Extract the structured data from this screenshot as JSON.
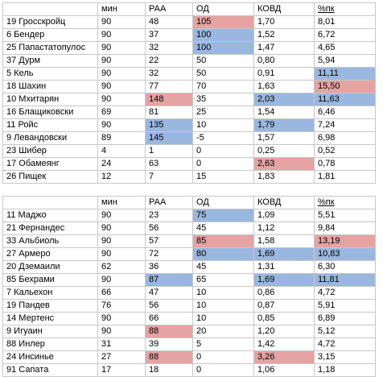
{
  "colors": {
    "red": "#e5a3a3",
    "blue": "#9ab7df"
  },
  "tables": [
    {
      "headers": [
        "",
        "мин",
        "РАА",
        "ОД",
        "КОВД",
        "%пк"
      ],
      "rows": [
        [
          {
            "v": "19 Гросскройц"
          },
          {
            "v": "90"
          },
          {
            "v": "48"
          },
          {
            "v": "105",
            "c": "red"
          },
          {
            "v": "1,70"
          },
          {
            "v": "8,01"
          }
        ],
        [
          {
            "v": "6 Бендер"
          },
          {
            "v": "90"
          },
          {
            "v": "37"
          },
          {
            "v": "100",
            "c": "blue"
          },
          {
            "v": "1,52"
          },
          {
            "v": "6,72"
          }
        ],
        [
          {
            "v": "25 Папастатопулос"
          },
          {
            "v": "90"
          },
          {
            "v": "32"
          },
          {
            "v": "100",
            "c": "blue"
          },
          {
            "v": "1,47"
          },
          {
            "v": "4,65"
          }
        ],
        [
          {
            "v": "37 Дурм"
          },
          {
            "v": "90"
          },
          {
            "v": "22"
          },
          {
            "v": "50"
          },
          {
            "v": "0,80"
          },
          {
            "v": "5,94"
          }
        ],
        [
          {
            "v": "5 Кель"
          },
          {
            "v": "90"
          },
          {
            "v": "32"
          },
          {
            "v": "50"
          },
          {
            "v": "0,91"
          },
          {
            "v": "11,11",
            "c": "blue"
          }
        ],
        [
          {
            "v": "18 Шахин"
          },
          {
            "v": "90"
          },
          {
            "v": "77"
          },
          {
            "v": "70"
          },
          {
            "v": "1,63"
          },
          {
            "v": "15,50",
            "c": "red"
          }
        ],
        [
          {
            "v": "10 Мхитарян"
          },
          {
            "v": "90"
          },
          {
            "v": "148",
            "c": "red"
          },
          {
            "v": "35"
          },
          {
            "v": "2,03",
            "c": "blue"
          },
          {
            "v": "11,63",
            "c": "blue"
          }
        ],
        [
          {
            "v": "16 Блащиковски"
          },
          {
            "v": "69"
          },
          {
            "v": "81"
          },
          {
            "v": "25"
          },
          {
            "v": "1,54"
          },
          {
            "v": "6,46"
          }
        ],
        [
          {
            "v": "11 Ройс"
          },
          {
            "v": "90"
          },
          {
            "v": "135",
            "c": "blue"
          },
          {
            "v": "10"
          },
          {
            "v": "1,79",
            "c": "blue"
          },
          {
            "v": "7,24"
          }
        ],
        [
          {
            "v": "9 Левандовски"
          },
          {
            "v": "89"
          },
          {
            "v": "145",
            "c": "blue"
          },
          {
            "v": "-5"
          },
          {
            "v": "1,57"
          },
          {
            "v": "6,98"
          }
        ],
        [
          {
            "v": "23 Шибер"
          },
          {
            "v": "4"
          },
          {
            "v": "1"
          },
          {
            "v": "0"
          },
          {
            "v": "0,25"
          },
          {
            "v": "0,52"
          }
        ],
        [
          {
            "v": "17 Обамеянг"
          },
          {
            "v": "24"
          },
          {
            "v": "63"
          },
          {
            "v": "0"
          },
          {
            "v": "2,63",
            "c": "red"
          },
          {
            "v": "0,78"
          }
        ],
        [
          {
            "v": "26 Пищек"
          },
          {
            "v": "12"
          },
          {
            "v": "7"
          },
          {
            "v": "15"
          },
          {
            "v": "1,83"
          },
          {
            "v": "1,81"
          }
        ]
      ]
    },
    {
      "headers": [
        "",
        "мин",
        "РАА",
        "ОД",
        "КОВД",
        "%пк"
      ],
      "rows": [
        [
          {
            "v": "11 Маджо"
          },
          {
            "v": "90"
          },
          {
            "v": "23"
          },
          {
            "v": "75",
            "c": "blue"
          },
          {
            "v": "1,09"
          },
          {
            "v": "5,51"
          }
        ],
        [
          {
            "v": "21 Фернандес"
          },
          {
            "v": "90"
          },
          {
            "v": "56"
          },
          {
            "v": "45"
          },
          {
            "v": "1,12"
          },
          {
            "v": "9,84"
          }
        ],
        [
          {
            "v": "33 Альбиоль"
          },
          {
            "v": "90"
          },
          {
            "v": "57"
          },
          {
            "v": "85",
            "c": "red"
          },
          {
            "v": "1,58"
          },
          {
            "v": "13,19",
            "c": "red"
          }
        ],
        [
          {
            "v": "27 Армеро"
          },
          {
            "v": "90"
          },
          {
            "v": "72"
          },
          {
            "v": "80",
            "c": "blue"
          },
          {
            "v": "1,69",
            "c": "blue"
          },
          {
            "v": "10,83",
            "c": "blue"
          }
        ],
        [
          {
            "v": "20 Дземаили"
          },
          {
            "v": "62"
          },
          {
            "v": "36"
          },
          {
            "v": "45"
          },
          {
            "v": "1,31"
          },
          {
            "v": "6,30"
          }
        ],
        [
          {
            "v": "85 Бехрами"
          },
          {
            "v": "90"
          },
          {
            "v": "87",
            "c": "blue"
          },
          {
            "v": "65"
          },
          {
            "v": "1,69",
            "c": "blue"
          },
          {
            "v": "11,81",
            "c": "blue"
          }
        ],
        [
          {
            "v": "7 Кальехон"
          },
          {
            "v": "66"
          },
          {
            "v": "47"
          },
          {
            "v": "10"
          },
          {
            "v": "0,86"
          },
          {
            "v": "4,72"
          }
        ],
        [
          {
            "v": "19 Пандев"
          },
          {
            "v": "76"
          },
          {
            "v": "56"
          },
          {
            "v": "10"
          },
          {
            "v": "0,87"
          },
          {
            "v": "5,91"
          }
        ],
        [
          {
            "v": "14 Мертенс"
          },
          {
            "v": "90"
          },
          {
            "v": "66"
          },
          {
            "v": "10"
          },
          {
            "v": "0,85"
          },
          {
            "v": "6,89"
          }
        ],
        [
          {
            "v": "9 Игуаин"
          },
          {
            "v": "90"
          },
          {
            "v": "88",
            "c": "red"
          },
          {
            "v": "20"
          },
          {
            "v": "1,20"
          },
          {
            "v": "5,12"
          }
        ],
        [
          {
            "v": "88 Инлер"
          },
          {
            "v": "31"
          },
          {
            "v": "39"
          },
          {
            "v": "5"
          },
          {
            "v": "1,42"
          },
          {
            "v": "4,72"
          }
        ],
        [
          {
            "v": "24 Инсинье"
          },
          {
            "v": "27"
          },
          {
            "v": "88",
            "c": "red"
          },
          {
            "v": "0"
          },
          {
            "v": "3,26",
            "c": "red"
          },
          {
            "v": "3,15"
          }
        ],
        [
          {
            "v": "91 Сапата"
          },
          {
            "v": "17"
          },
          {
            "v": "18"
          },
          {
            "v": "0"
          },
          {
            "v": "1,06"
          },
          {
            "v": "1,18"
          }
        ]
      ]
    }
  ]
}
